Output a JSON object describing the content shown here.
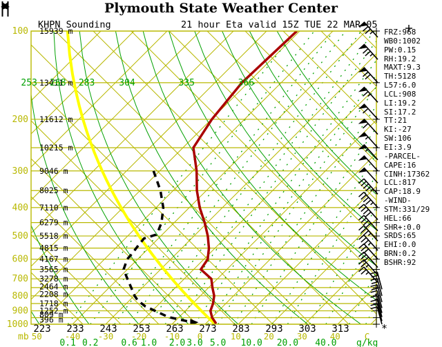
{
  "window": {
    "title": "Plymouth State Weather Center",
    "flag_icon": "wind-pennant"
  },
  "header": {
    "station": "KHPN Sounding",
    "valid_line": "21 hour Eta valid 15Z TUE 22 MAR 05"
  },
  "stats_panel": [
    "FRZ:968",
    "WB0:1002",
    "PW:0.15",
    "RH:19.2",
    "MAXT:9.3",
    "TH:5128",
    "L57:6.0",
    "LCL:908",
    "LI:19.2",
    "SI:17.2",
    "TT:21",
    "KI:-27",
    "SW:106",
    "EI:3.9",
    "-PARCEL-",
    "CAPE:16",
    "CINH:17362",
    "LCL:817",
    "CAP:18.9",
    "-WIND-",
    "STM:331/29",
    "HEL:66",
    "SHR+:0.0",
    "SRDS:65",
    "EHI:0.0",
    "BRN:0.2",
    "BSHR:92"
  ],
  "chart_data": {
    "type": "line",
    "title": "KHPN Skew-T / Log-P sounding",
    "y_axis": {
      "unit": "mb",
      "unit_label": "mb",
      "scale": "log-pressure",
      "lines_mb": [
        100,
        150,
        200,
        250,
        300,
        350,
        400,
        450,
        500,
        550,
        600,
        650,
        700,
        750,
        800,
        850,
        900,
        950,
        1000
      ],
      "labeled_mb": [
        100,
        200,
        300,
        400,
        500,
        600,
        700,
        800,
        900,
        1000
      ]
    },
    "x_axis": {
      "kelvin_labels": [
        223,
        233,
        243,
        253,
        263,
        273,
        283,
        293,
        303,
        313
      ],
      "celsius_labels": [
        -50,
        -40,
        -30,
        -20,
        -10,
        0,
        10,
        20,
        30,
        40
      ],
      "celsius_unit": "C",
      "mixing_ratio_labels": [
        0.1,
        0.2,
        0.6,
        1.0,
        2.0,
        3.0,
        5.0,
        10.0,
        20.0,
        40.0
      ],
      "mixing_ratio_unit": "g/kg"
    },
    "heights": [
      {
        "p": 100,
        "label": "15939 m"
      },
      {
        "p": 150,
        "label": "13411 m"
      },
      {
        "p": 200,
        "label": "11612 m"
      },
      {
        "p": 250,
        "label": "10215 m"
      },
      {
        "p": 300,
        "label": "9046 m"
      },
      {
        "p": 350,
        "label": "8025 m"
      },
      {
        "p": 400,
        "label": "7110 m"
      },
      {
        "p": 450,
        "label": "6279 m"
      },
      {
        "p": 500,
        "label": "5518 m"
      },
      {
        "p": 550,
        "label": "4815 m"
      },
      {
        "p": 600,
        "label": "4167 m"
      },
      {
        "p": 650,
        "label": "3565 m"
      },
      {
        "p": 700,
        "label": "3278 m"
      },
      {
        "p": 745,
        "label": "2464 m"
      },
      {
        "p": 790,
        "label": "2208 m"
      },
      {
        "p": 850,
        "label": "1718 m"
      },
      {
        "p": 900,
        "label": "1252 m"
      },
      {
        "p": 928,
        "label": "809 m"
      },
      {
        "p": 965,
        "label": "396 m"
      }
    ],
    "theta_curves_K": [
      223,
      238,
      253,
      268,
      283,
      304,
      320,
      335,
      350,
      366,
      382,
      398
    ],
    "theta_labeled_K": [
      253,
      268,
      283,
      304,
      335,
      366
    ],
    "mixing_ratio_extra_lines": [
      0.4,
      1.5,
      4,
      7,
      15,
      30,
      60,
      80
    ],
    "series": [
      {
        "name": "temperature",
        "color": "#aa0000",
        "style": "solid",
        "points": [
          [
            100,
            -61
          ],
          [
            150,
            -62
          ],
          [
            200,
            -60
          ],
          [
            250,
            -57
          ],
          [
            300,
            -49
          ],
          [
            350,
            -43
          ],
          [
            400,
            -37
          ],
          [
            450,
            -31
          ],
          [
            500,
            -26
          ],
          [
            550,
            -22
          ],
          [
            600,
            -19
          ],
          [
            650,
            -18
          ],
          [
            700,
            -12
          ],
          [
            750,
            -9
          ],
          [
            800,
            -6
          ],
          [
            850,
            -4
          ],
          [
            900,
            -2.6
          ],
          [
            950,
            0
          ],
          [
            995,
            3
          ]
        ]
      },
      {
        "name": "dewpoint",
        "color": "#000000",
        "style": "dashed",
        "points": [
          [
            300,
            -62
          ],
          [
            350,
            -54
          ],
          [
            400,
            -48
          ],
          [
            450,
            -44
          ],
          [
            480,
            -42.5
          ],
          [
            495,
            -42
          ],
          [
            510,
            -44.5
          ],
          [
            545,
            -44
          ],
          [
            575,
            -43.5
          ],
          [
            600,
            -43.3
          ],
          [
            650,
            -41.3
          ],
          [
            700,
            -37.3
          ],
          [
            750,
            -33.5
          ],
          [
            800,
            -30
          ],
          [
            830,
            -27.6
          ],
          [
            870,
            -23.5
          ],
          [
            895,
            -20
          ],
          [
            945,
            -13.4
          ],
          [
            985,
            -4.6
          ]
        ]
      },
      {
        "name": "parcel",
        "color": "#ffff00",
        "style": "solid",
        "theta_K": 276
      }
    ],
    "winds_right_edge": [
      {
        "p": 105,
        "kt": 75
      },
      {
        "p": 125,
        "kt": 75
      },
      {
        "p": 150,
        "kt": 70
      },
      {
        "p": 175,
        "kt": 65
      },
      {
        "p": 200,
        "kt": 60
      },
      {
        "p": 225,
        "kt": 60
      },
      {
        "p": 250,
        "kt": 55
      },
      {
        "p": 275,
        "kt": 55
      },
      {
        "p": 300,
        "kt": 50
      },
      {
        "p": 330,
        "kt": 50
      },
      {
        "p": 360,
        "kt": 45
      },
      {
        "p": 400,
        "kt": 45
      },
      {
        "p": 440,
        "kt": 40
      },
      {
        "p": 480,
        "kt": 40
      },
      {
        "p": 520,
        "kt": 35
      },
      {
        "p": 560,
        "kt": 35
      },
      {
        "p": 600,
        "kt": 30
      },
      {
        "p": 640,
        "kt": 30
      },
      {
        "p": 680,
        "kt": 25
      },
      {
        "p": 720,
        "kt": 25
      },
      {
        "p": 760,
        "kt": 20
      },
      {
        "p": 800,
        "kt": 20
      },
      {
        "p": 840,
        "kt": 20
      },
      {
        "p": 880,
        "kt": 15
      },
      {
        "p": 915,
        "kt": 15
      },
      {
        "p": 945,
        "kt": 10
      },
      {
        "p": 975,
        "kt": 10
      },
      {
        "p": 1000,
        "kt": 10
      }
    ],
    "colors": {
      "grid": "#b8b800",
      "adiabat_green": "#00a000",
      "temperature": "#aa0000",
      "dewpoint": "#000000",
      "parcel": "#ffff00",
      "labels_black": "#000000"
    },
    "legend_position": "none",
    "grid": true
  }
}
